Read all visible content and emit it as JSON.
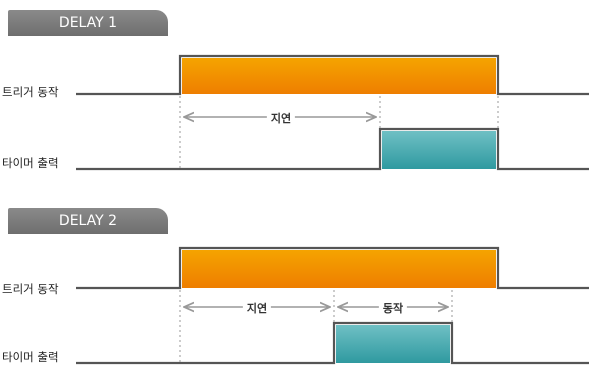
{
  "panels": [
    {
      "title": "DELAY 1",
      "trigger_label": "트리거 동작",
      "output_label": "타이머 출력",
      "segments": [
        {
          "label": "지연"
        }
      ]
    },
    {
      "title": "DELAY 2",
      "trigger_label": "트리거 동작",
      "output_label": "타이머 출력",
      "segments": [
        {
          "label": "지연"
        },
        {
          "label": "동작"
        }
      ]
    }
  ],
  "colors": {
    "trigger_pulse_top": "#f5a400",
    "trigger_pulse_bottom": "#ee7e00",
    "output_pulse_top": "#6fc0c4",
    "output_pulse_bottom": "#2f9aa0",
    "signal_line": "#555555",
    "tab_background": "#7a7a7a"
  }
}
